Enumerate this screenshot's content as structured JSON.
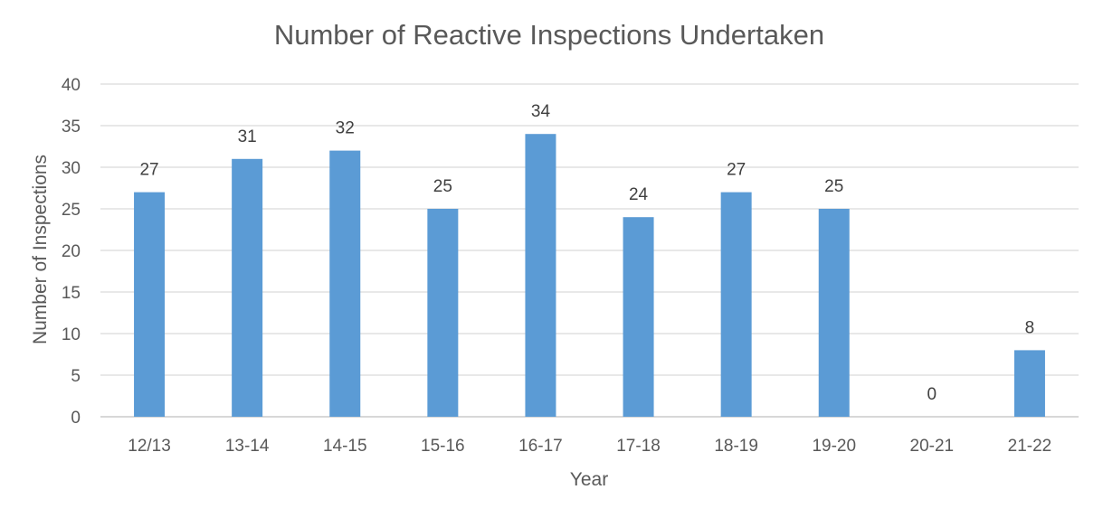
{
  "chart_data": {
    "type": "bar",
    "title": "Number of Reactive Inspections Undertaken",
    "xlabel": "Year",
    "ylabel": "Number of Inspections",
    "categories": [
      "12/13",
      "13-14",
      "14-15",
      "15-16",
      "16-17",
      "17-18",
      "18-19",
      "19-20",
      "20-21",
      "21-22"
    ],
    "values": [
      27,
      31,
      32,
      25,
      34,
      24,
      27,
      25,
      0,
      8
    ],
    "ylim": [
      0,
      40
    ],
    "yticks": [
      0,
      5,
      10,
      15,
      20,
      25,
      30,
      35,
      40
    ],
    "grid": true,
    "legend": "none",
    "data_labels": true,
    "bar_color": "#5b9bd5"
  }
}
